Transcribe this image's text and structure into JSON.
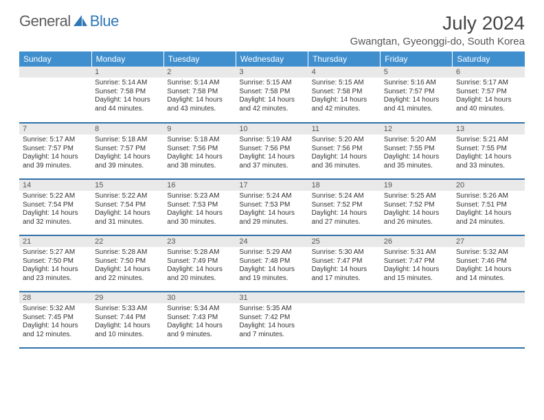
{
  "brand": {
    "part1": "General",
    "part2": "Blue"
  },
  "title": "July 2024",
  "location": "Gwangtan, Gyeonggi-do, South Korea",
  "dow": [
    "Sunday",
    "Monday",
    "Tuesday",
    "Wednesday",
    "Thursday",
    "Friday",
    "Saturday"
  ],
  "colors": {
    "header_bg": "#3f8fcf",
    "header_text": "#ffffff",
    "rule": "#2f6fa8",
    "daynum_bg": "#e9e9e9",
    "text": "#333333",
    "brand_gray": "#5c5c5c",
    "brand_blue": "#2f77b6"
  },
  "typography": {
    "title_fontsize": 28,
    "location_fontsize": 15,
    "dow_fontsize": 12,
    "daynum_fontsize": 11,
    "body_fontsize": 10
  },
  "layout": {
    "columns": 7,
    "rows": 5,
    "first_weekday_offset": 1
  },
  "weeks": [
    [
      null,
      {
        "n": "1",
        "sunrise": "Sunrise: 5:14 AM",
        "sunset": "Sunset: 7:58 PM",
        "daylight": "Daylight: 14 hours and 44 minutes."
      },
      {
        "n": "2",
        "sunrise": "Sunrise: 5:14 AM",
        "sunset": "Sunset: 7:58 PM",
        "daylight": "Daylight: 14 hours and 43 minutes."
      },
      {
        "n": "3",
        "sunrise": "Sunrise: 5:15 AM",
        "sunset": "Sunset: 7:58 PM",
        "daylight": "Daylight: 14 hours and 42 minutes."
      },
      {
        "n": "4",
        "sunrise": "Sunrise: 5:15 AM",
        "sunset": "Sunset: 7:58 PM",
        "daylight": "Daylight: 14 hours and 42 minutes."
      },
      {
        "n": "5",
        "sunrise": "Sunrise: 5:16 AM",
        "sunset": "Sunset: 7:57 PM",
        "daylight": "Daylight: 14 hours and 41 minutes."
      },
      {
        "n": "6",
        "sunrise": "Sunrise: 5:17 AM",
        "sunset": "Sunset: 7:57 PM",
        "daylight": "Daylight: 14 hours and 40 minutes."
      }
    ],
    [
      {
        "n": "7",
        "sunrise": "Sunrise: 5:17 AM",
        "sunset": "Sunset: 7:57 PM",
        "daylight": "Daylight: 14 hours and 39 minutes."
      },
      {
        "n": "8",
        "sunrise": "Sunrise: 5:18 AM",
        "sunset": "Sunset: 7:57 PM",
        "daylight": "Daylight: 14 hours and 39 minutes."
      },
      {
        "n": "9",
        "sunrise": "Sunrise: 5:18 AM",
        "sunset": "Sunset: 7:56 PM",
        "daylight": "Daylight: 14 hours and 38 minutes."
      },
      {
        "n": "10",
        "sunrise": "Sunrise: 5:19 AM",
        "sunset": "Sunset: 7:56 PM",
        "daylight": "Daylight: 14 hours and 37 minutes."
      },
      {
        "n": "11",
        "sunrise": "Sunrise: 5:20 AM",
        "sunset": "Sunset: 7:56 PM",
        "daylight": "Daylight: 14 hours and 36 minutes."
      },
      {
        "n": "12",
        "sunrise": "Sunrise: 5:20 AM",
        "sunset": "Sunset: 7:55 PM",
        "daylight": "Daylight: 14 hours and 35 minutes."
      },
      {
        "n": "13",
        "sunrise": "Sunrise: 5:21 AM",
        "sunset": "Sunset: 7:55 PM",
        "daylight": "Daylight: 14 hours and 33 minutes."
      }
    ],
    [
      {
        "n": "14",
        "sunrise": "Sunrise: 5:22 AM",
        "sunset": "Sunset: 7:54 PM",
        "daylight": "Daylight: 14 hours and 32 minutes."
      },
      {
        "n": "15",
        "sunrise": "Sunrise: 5:22 AM",
        "sunset": "Sunset: 7:54 PM",
        "daylight": "Daylight: 14 hours and 31 minutes."
      },
      {
        "n": "16",
        "sunrise": "Sunrise: 5:23 AM",
        "sunset": "Sunset: 7:53 PM",
        "daylight": "Daylight: 14 hours and 30 minutes."
      },
      {
        "n": "17",
        "sunrise": "Sunrise: 5:24 AM",
        "sunset": "Sunset: 7:53 PM",
        "daylight": "Daylight: 14 hours and 29 minutes."
      },
      {
        "n": "18",
        "sunrise": "Sunrise: 5:24 AM",
        "sunset": "Sunset: 7:52 PM",
        "daylight": "Daylight: 14 hours and 27 minutes."
      },
      {
        "n": "19",
        "sunrise": "Sunrise: 5:25 AM",
        "sunset": "Sunset: 7:52 PM",
        "daylight": "Daylight: 14 hours and 26 minutes."
      },
      {
        "n": "20",
        "sunrise": "Sunrise: 5:26 AM",
        "sunset": "Sunset: 7:51 PM",
        "daylight": "Daylight: 14 hours and 24 minutes."
      }
    ],
    [
      {
        "n": "21",
        "sunrise": "Sunrise: 5:27 AM",
        "sunset": "Sunset: 7:50 PM",
        "daylight": "Daylight: 14 hours and 23 minutes."
      },
      {
        "n": "22",
        "sunrise": "Sunrise: 5:28 AM",
        "sunset": "Sunset: 7:50 PM",
        "daylight": "Daylight: 14 hours and 22 minutes."
      },
      {
        "n": "23",
        "sunrise": "Sunrise: 5:28 AM",
        "sunset": "Sunset: 7:49 PM",
        "daylight": "Daylight: 14 hours and 20 minutes."
      },
      {
        "n": "24",
        "sunrise": "Sunrise: 5:29 AM",
        "sunset": "Sunset: 7:48 PM",
        "daylight": "Daylight: 14 hours and 19 minutes."
      },
      {
        "n": "25",
        "sunrise": "Sunrise: 5:30 AM",
        "sunset": "Sunset: 7:47 PM",
        "daylight": "Daylight: 14 hours and 17 minutes."
      },
      {
        "n": "26",
        "sunrise": "Sunrise: 5:31 AM",
        "sunset": "Sunset: 7:47 PM",
        "daylight": "Daylight: 14 hours and 15 minutes."
      },
      {
        "n": "27",
        "sunrise": "Sunrise: 5:32 AM",
        "sunset": "Sunset: 7:46 PM",
        "daylight": "Daylight: 14 hours and 14 minutes."
      }
    ],
    [
      {
        "n": "28",
        "sunrise": "Sunrise: 5:32 AM",
        "sunset": "Sunset: 7:45 PM",
        "daylight": "Daylight: 14 hours and 12 minutes."
      },
      {
        "n": "29",
        "sunrise": "Sunrise: 5:33 AM",
        "sunset": "Sunset: 7:44 PM",
        "daylight": "Daylight: 14 hours and 10 minutes."
      },
      {
        "n": "30",
        "sunrise": "Sunrise: 5:34 AM",
        "sunset": "Sunset: 7:43 PM",
        "daylight": "Daylight: 14 hours and 9 minutes."
      },
      {
        "n": "31",
        "sunrise": "Sunrise: 5:35 AM",
        "sunset": "Sunset: 7:42 PM",
        "daylight": "Daylight: 14 hours and 7 minutes."
      },
      null,
      null,
      null
    ]
  ]
}
